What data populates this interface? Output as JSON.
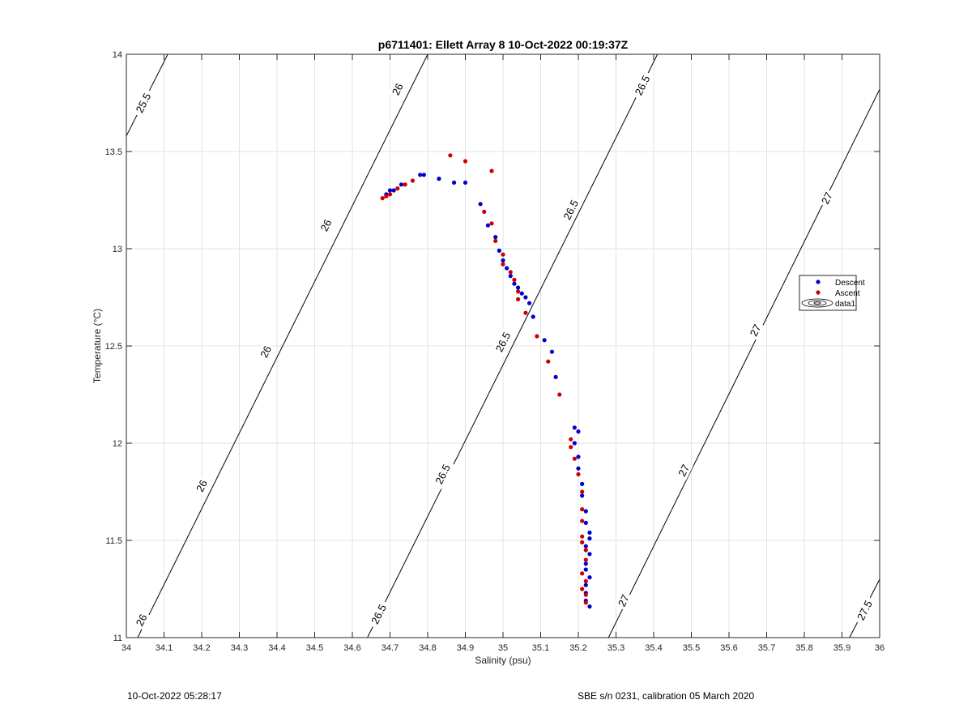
{
  "chart_data": {
    "type": "scatter",
    "title": "p6711401: Ellett Array 8 10-Oct-2022 00:19:37Z",
    "xlabel": "Salinity (psu)",
    "ylabel": "Temperature (°C)",
    "xlim": [
      34,
      36
    ],
    "ylim": [
      11,
      14
    ],
    "grid": true,
    "legend_position": "right",
    "xticks": [
      "34",
      "34.1",
      "34.2",
      "34.3",
      "34.4",
      "34.5",
      "34.6",
      "34.7",
      "34.8",
      "34.9",
      "35",
      "35.1",
      "35.2",
      "35.3",
      "35.4",
      "35.5",
      "35.6",
      "35.7",
      "35.8",
      "35.9",
      "36"
    ],
    "yticks": [
      "11",
      "11.5",
      "12",
      "12.5",
      "13",
      "13.5",
      "14"
    ],
    "legend": [
      {
        "label": "Descent",
        "color": "#0000cc"
      },
      {
        "label": "Ascent",
        "color": "#cc0000"
      },
      {
        "label": "data1",
        "color": "#000000"
      }
    ],
    "contours": [
      {
        "label": "25.5",
        "points": [
          [
            34.0,
            13.58
          ],
          [
            34.11,
            14.0
          ]
        ],
        "labels_at": [
          [
            34.045,
            13.75
          ]
        ]
      },
      {
        "label": "26",
        "points": [
          [
            34.03,
            11.0
          ],
          [
            34.8,
            14.0
          ]
        ],
        "labels_at": [
          [
            34.04,
            11.09
          ],
          [
            34.2,
            11.78
          ],
          [
            34.37,
            12.47
          ],
          [
            34.53,
            13.12
          ],
          [
            34.72,
            13.82
          ]
        ]
      },
      {
        "label": "26.5",
        "points": [
          [
            34.64,
            11.0
          ],
          [
            35.41,
            14.0
          ]
        ],
        "labels_at": [
          [
            34.67,
            11.12
          ],
          [
            34.84,
            11.84
          ],
          [
            35.0,
            12.52
          ],
          [
            35.18,
            13.2
          ],
          [
            35.37,
            13.84
          ]
        ]
      },
      {
        "label": "27",
        "points": [
          [
            35.28,
            11.0
          ],
          [
            36.0,
            13.82
          ]
        ],
        "labels_at": [
          [
            35.32,
            11.19
          ],
          [
            35.48,
            11.86
          ],
          [
            35.67,
            12.58
          ],
          [
            35.86,
            13.26
          ]
        ]
      },
      {
        "label": "27.5",
        "points": [
          [
            35.92,
            11.0
          ],
          [
            36.0,
            11.3
          ]
        ],
        "labels_at": [
          [
            35.96,
            11.14
          ]
        ]
      }
    ],
    "series": [
      {
        "name": "Descent",
        "color": "#0000cc",
        "points": [
          [
            34.69,
            13.28
          ],
          [
            34.7,
            13.3
          ],
          [
            34.71,
            13.3
          ],
          [
            34.73,
            13.33
          ],
          [
            34.78,
            13.38
          ],
          [
            34.79,
            13.38
          ],
          [
            34.83,
            13.36
          ],
          [
            34.87,
            13.34
          ],
          [
            34.9,
            13.34
          ],
          [
            34.94,
            13.23
          ],
          [
            34.96,
            13.12
          ],
          [
            34.98,
            13.06
          ],
          [
            34.99,
            12.99
          ],
          [
            35.0,
            12.94
          ],
          [
            35.01,
            12.9
          ],
          [
            35.02,
            12.86
          ],
          [
            35.03,
            12.82
          ],
          [
            35.04,
            12.8
          ],
          [
            35.05,
            12.77
          ],
          [
            35.06,
            12.75
          ],
          [
            35.07,
            12.72
          ],
          [
            35.08,
            12.65
          ],
          [
            35.11,
            12.53
          ],
          [
            35.13,
            12.47
          ],
          [
            35.14,
            12.34
          ],
          [
            35.19,
            12.08
          ],
          [
            35.2,
            12.06
          ],
          [
            35.19,
            12.0
          ],
          [
            35.2,
            11.93
          ],
          [
            35.2,
            11.87
          ],
          [
            35.21,
            11.79
          ],
          [
            35.21,
            11.73
          ],
          [
            35.22,
            11.65
          ],
          [
            35.22,
            11.59
          ],
          [
            35.23,
            11.54
          ],
          [
            35.23,
            11.51
          ],
          [
            35.22,
            11.47
          ],
          [
            35.23,
            11.43
          ],
          [
            35.22,
            11.38
          ],
          [
            35.22,
            11.35
          ],
          [
            35.23,
            11.31
          ],
          [
            35.22,
            11.27
          ],
          [
            35.22,
            11.23
          ],
          [
            35.22,
            11.19
          ],
          [
            35.23,
            11.16
          ]
        ]
      },
      {
        "name": "Ascent",
        "color": "#cc0000",
        "points": [
          [
            34.68,
            13.26
          ],
          [
            34.69,
            13.27
          ],
          [
            34.7,
            13.28
          ],
          [
            34.72,
            13.31
          ],
          [
            34.74,
            13.33
          ],
          [
            34.76,
            13.35
          ],
          [
            34.86,
            13.48
          ],
          [
            34.9,
            13.45
          ],
          [
            34.97,
            13.4
          ],
          [
            34.95,
            13.19
          ],
          [
            34.97,
            13.13
          ],
          [
            34.98,
            13.04
          ],
          [
            35.0,
            12.97
          ],
          [
            35.0,
            12.92
          ],
          [
            35.02,
            12.88
          ],
          [
            35.03,
            12.84
          ],
          [
            35.04,
            12.78
          ],
          [
            35.04,
            12.74
          ],
          [
            35.06,
            12.67
          ],
          [
            35.09,
            12.55
          ],
          [
            35.12,
            12.42
          ],
          [
            35.15,
            12.25
          ],
          [
            35.18,
            12.02
          ],
          [
            35.18,
            11.98
          ],
          [
            35.19,
            11.92
          ],
          [
            35.2,
            11.84
          ],
          [
            35.21,
            11.75
          ],
          [
            35.21,
            11.66
          ],
          [
            35.21,
            11.6
          ],
          [
            35.21,
            11.52
          ],
          [
            35.21,
            11.49
          ],
          [
            35.22,
            11.45
          ],
          [
            35.22,
            11.4
          ],
          [
            35.21,
            11.33
          ],
          [
            35.22,
            11.29
          ],
          [
            35.21,
            11.25
          ],
          [
            35.22,
            11.22
          ],
          [
            35.22,
            11.18
          ]
        ]
      }
    ]
  },
  "footer": {
    "left": "10-Oct-2022 05:28:17",
    "right": "SBE s/n 0231, calibration 05 March 2020"
  }
}
